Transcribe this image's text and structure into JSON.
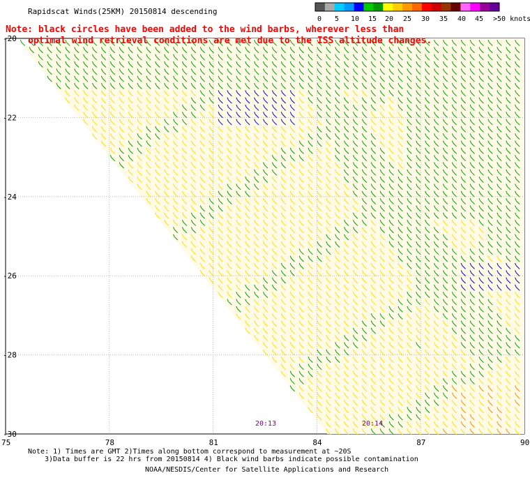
{
  "header": {
    "title": "Rapidscat Winds(25KM) 20150814 descending"
  },
  "note": {
    "line1": "Note: black circles have been added to the wind barbs, wherever less than",
    "line2": "optimal wind retrieval conditions are met due to the ISS altitude changes."
  },
  "color_scale": {
    "labels": [
      "0",
      "5",
      "10",
      "15",
      "20",
      "25",
      "30",
      "35",
      "40",
      "45",
      ">50 knots"
    ],
    "colors": [
      "#555555",
      "#aaaaaa",
      "#00ccff",
      "#0099ff",
      "#0000ff",
      "#00cc00",
      "#009900",
      "#ffff00",
      "#ffcc00",
      "#ff9900",
      "#ff6600",
      "#ff0000",
      "#cc0000",
      "#993300",
      "#660000",
      "#ff66ff",
      "#ff00ff",
      "#990099",
      "#660099"
    ]
  },
  "chart_data": {
    "type": "wind-barb map",
    "xlim": [
      75,
      90
    ],
    "ylim": [
      -30,
      -20
    ],
    "x_ticks": [
      "75",
      "78",
      "81",
      "84",
      "87",
      "90"
    ],
    "y_ticks": [
      "-20",
      "-22",
      "-24",
      "-26",
      "-28",
      "-30"
    ],
    "swath_times": [
      "20:13",
      "20:14"
    ],
    "regions": [
      {
        "color": "#009900",
        "label": "15-20 knots"
      },
      {
        "color": "#ffdd00",
        "label": "20-25 knots"
      },
      {
        "color": "#0000cc",
        "label": "10-15 knots"
      },
      {
        "color": "#ff9900",
        "label": "25-30 knots"
      }
    ]
  },
  "footer": {
    "line1": "Note: 1) Times are GMT 2)Times along bottom correspond to measurement at ~20S",
    "line2": "3)Data buffer is 22 hrs from 20150814 4) Black wind barbs indicate possible contamination",
    "line3": "NOAA/NESDIS/Center for Satellite Applications and Research"
  }
}
